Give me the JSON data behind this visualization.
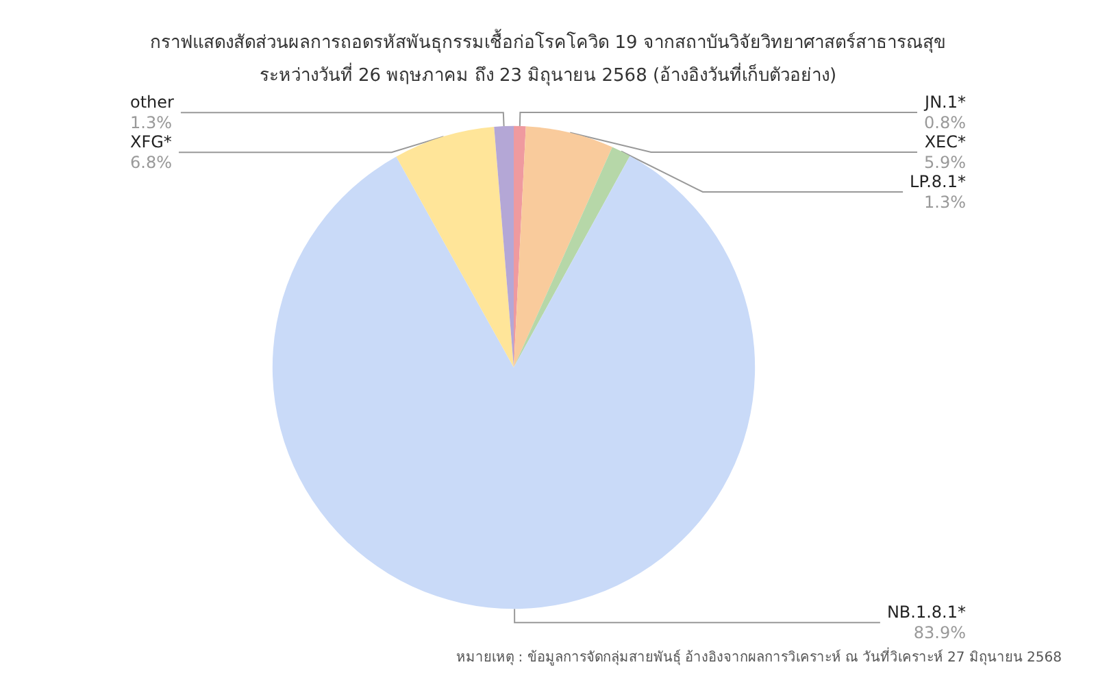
{
  "chart_data": {
    "type": "pie",
    "title": "กราฟแสดงสัดส่วนผลการถอดรหัสพันธุกรรมเชื้อก่อโรคโควิด 19 จากสถาบันวิจัยวิทยาศาสตร์สาธารณสุข",
    "subtitle": "ระหว่างวันที่ 26 พฤษภาคม ถึง 23 มิถุนายน 2568 (อ้างอิงวันที่เก็บตัวอย่าง)",
    "categories": [
      "JN.1*",
      "XEC*",
      "LP.8.1*",
      "NB.1.8.1*",
      "XFG*",
      "other"
    ],
    "values": [
      0.8,
      5.9,
      1.3,
      83.9,
      6.8,
      1.3
    ],
    "value_labels": [
      "0.8%",
      "5.9%",
      "1.3%",
      "83.9%",
      "6.8%",
      "1.3%"
    ],
    "colors": [
      "#ef9a9f",
      "#f9cb9c",
      "#b6d7a8",
      "#c9daf8",
      "#ffe599",
      "#b4a7d6"
    ],
    "legend": false,
    "annotations": [
      "หมายเหตุ : ข้อมูลการจัดกลุ่มสายพันธุ์ อ้างอิงจากผลการวิเคราะห์ ณ วันที่วิเคราะห์ 27 มิถุนายน 2568"
    ]
  }
}
